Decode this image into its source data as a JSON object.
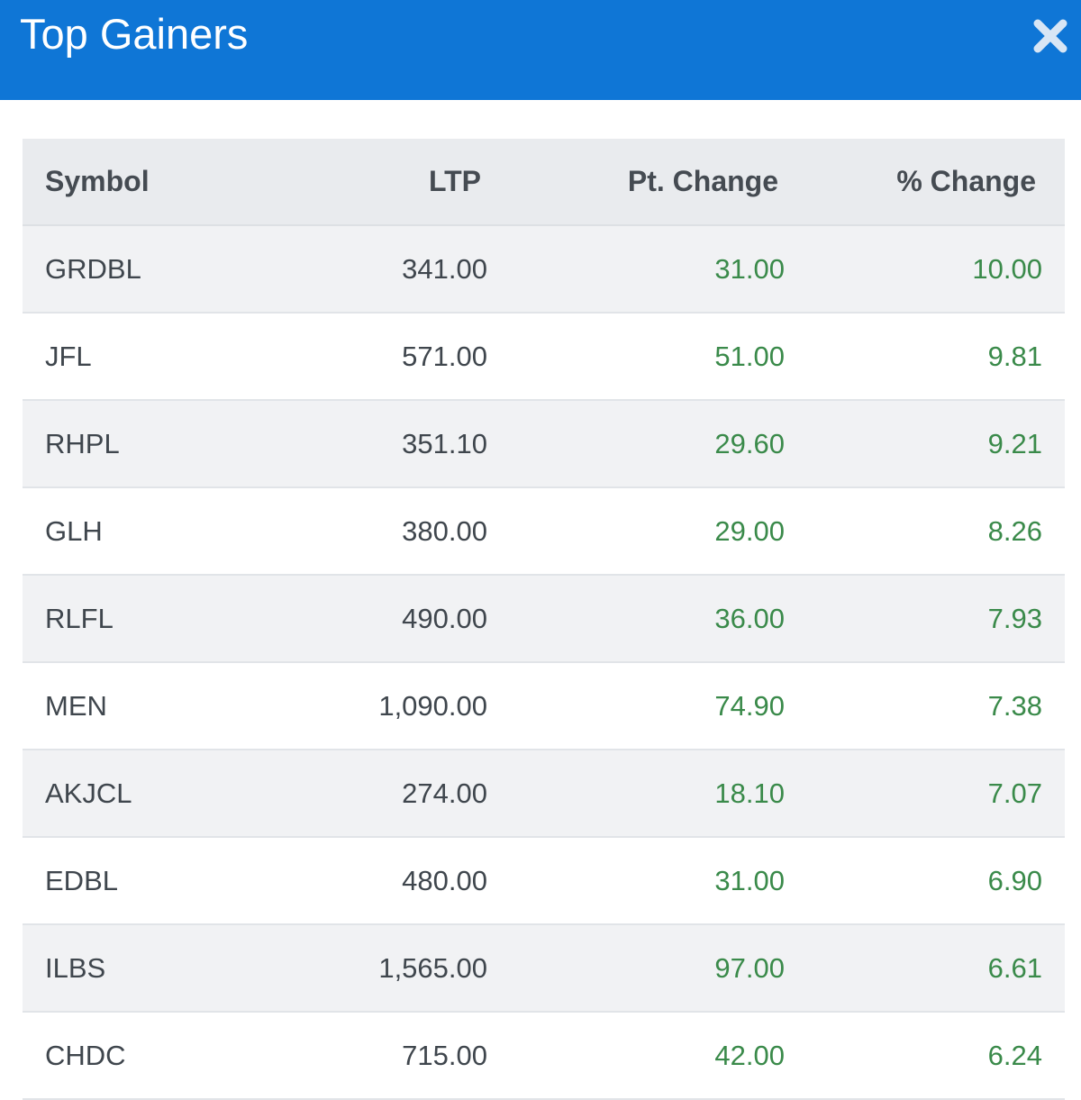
{
  "header": {
    "title": "Top Gainers",
    "close_icon": "close-icon",
    "background_color": "#0f76d6"
  },
  "table": {
    "columns": [
      "Symbol",
      "LTP",
      "Pt. Change",
      "% Change"
    ],
    "rows": [
      {
        "symbol": "GRDBL",
        "ltp": "341.00",
        "pt_change": "31.00",
        "pct_change": "10.00"
      },
      {
        "symbol": "JFL",
        "ltp": "571.00",
        "pt_change": "51.00",
        "pct_change": "9.81"
      },
      {
        "symbol": "RHPL",
        "ltp": "351.10",
        "pt_change": "29.60",
        "pct_change": "9.21"
      },
      {
        "symbol": "GLH",
        "ltp": "380.00",
        "pt_change": "29.00",
        "pct_change": "8.26"
      },
      {
        "symbol": "RLFL",
        "ltp": "490.00",
        "pt_change": "36.00",
        "pct_change": "7.93"
      },
      {
        "symbol": "MEN",
        "ltp": "1,090.00",
        "pt_change": "74.90",
        "pct_change": "7.38"
      },
      {
        "symbol": "AKJCL",
        "ltp": "274.00",
        "pt_change": "18.10",
        "pct_change": "7.07"
      },
      {
        "symbol": "EDBL",
        "ltp": "480.00",
        "pt_change": "31.00",
        "pct_change": "6.90"
      },
      {
        "symbol": "ILBS",
        "ltp": "1,565.00",
        "pt_change": "97.00",
        "pct_change": "6.61"
      },
      {
        "symbol": "CHDC",
        "ltp": "715.00",
        "pt_change": "42.00",
        "pct_change": "6.24"
      }
    ],
    "gain_color": "#3a8a4a"
  }
}
